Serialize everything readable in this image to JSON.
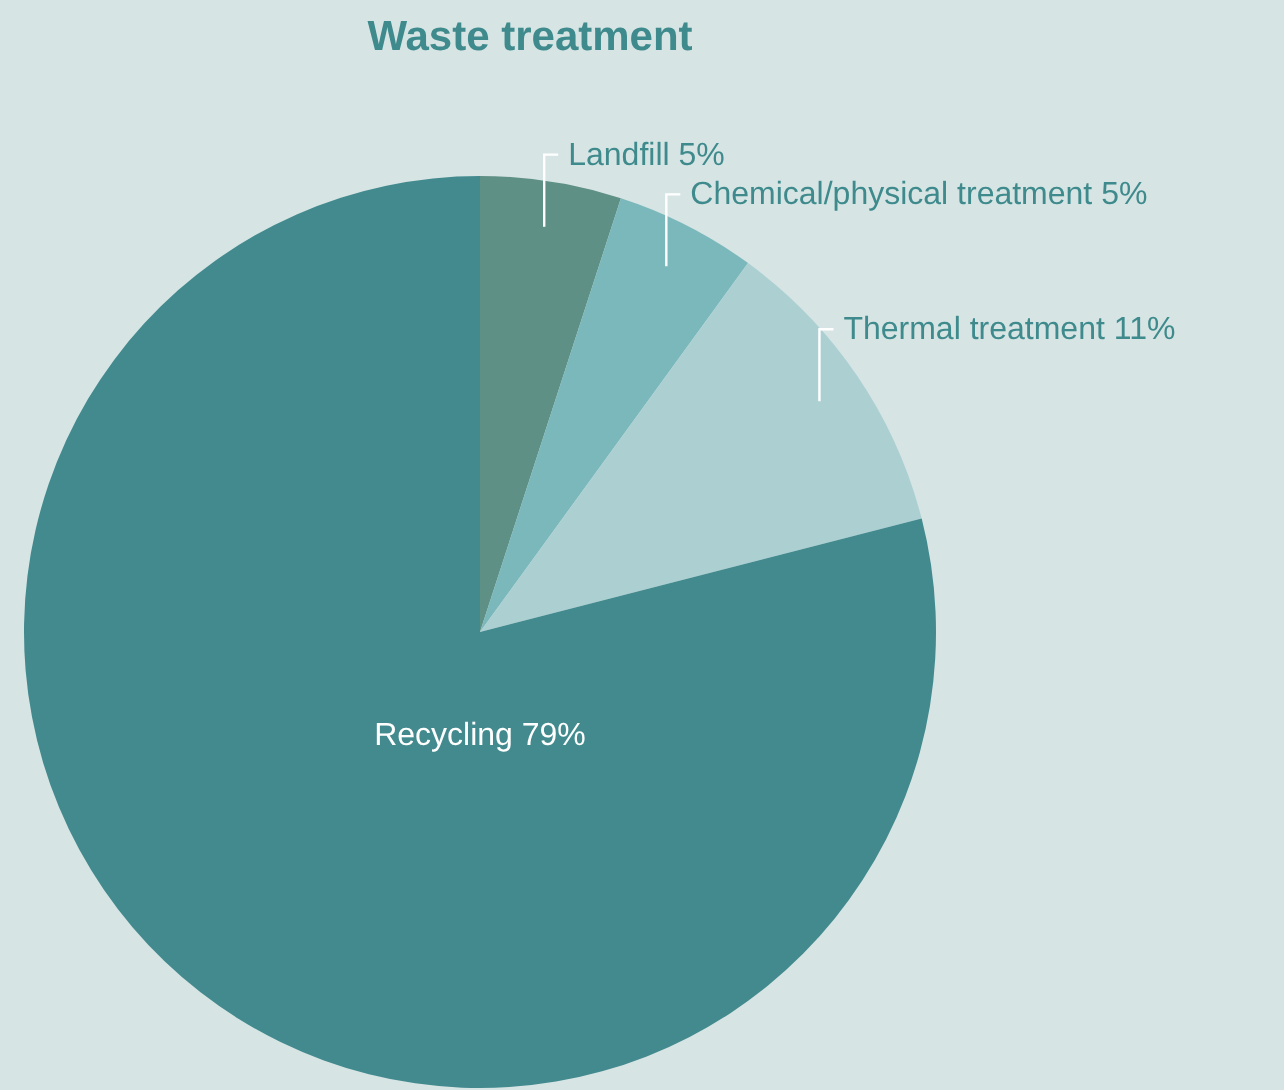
{
  "chart_data": {
    "type": "pie",
    "title": "Waste treatment",
    "categories": [
      "Landfill",
      "Chemical/physical treatment",
      "Thermal treatment",
      "Recycling"
    ],
    "values": [
      5,
      5,
      11,
      79
    ],
    "value_labels": [
      "5%",
      "5%",
      "11%",
      "79%"
    ],
    "colors": [
      "#5f9086",
      "#7ab8bc",
      "#acd0d2",
      "#428a8e"
    ]
  }
}
